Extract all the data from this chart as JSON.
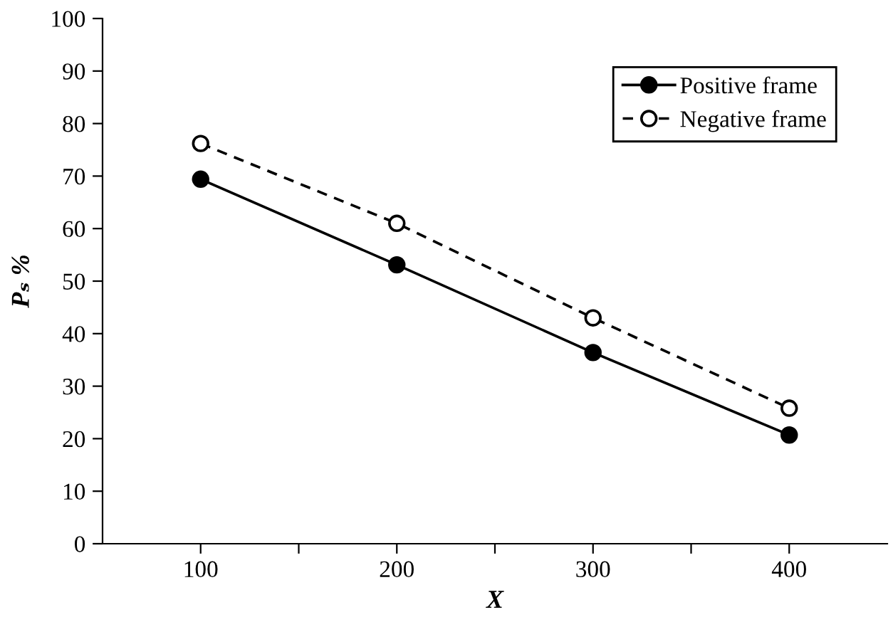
{
  "chart_data": {
    "type": "line",
    "xlabel": "X",
    "ylabel": "Pₛ %",
    "x": [
      100,
      200,
      300,
      400
    ],
    "series": [
      {
        "name": "Positive frame",
        "color": "#000000",
        "values": [
          69.4,
          53.1,
          36.4,
          20.7
        ],
        "marker": "circle",
        "line_style": "solid"
      },
      {
        "name": "Negative frame",
        "color": "#000000",
        "values": [
          76.2,
          61.0,
          43.0,
          25.8
        ],
        "marker": "open circle",
        "line_style": "dashed"
      }
    ],
    "xlim": [
      50,
      450
    ],
    "xticks": [
      100,
      {
        "value": 150,
        "label": null
      },
      200,
      {
        "value": 250,
        "label": null
      },
      300,
      {
        "value": 350,
        "label": null
      },
      400
    ],
    "ylim": [
      0,
      100
    ],
    "yticks": [
      0,
      10,
      20,
      30,
      40,
      50,
      60,
      70,
      80,
      90,
      100
    ],
    "grid": false,
    "legend": "top right"
  }
}
